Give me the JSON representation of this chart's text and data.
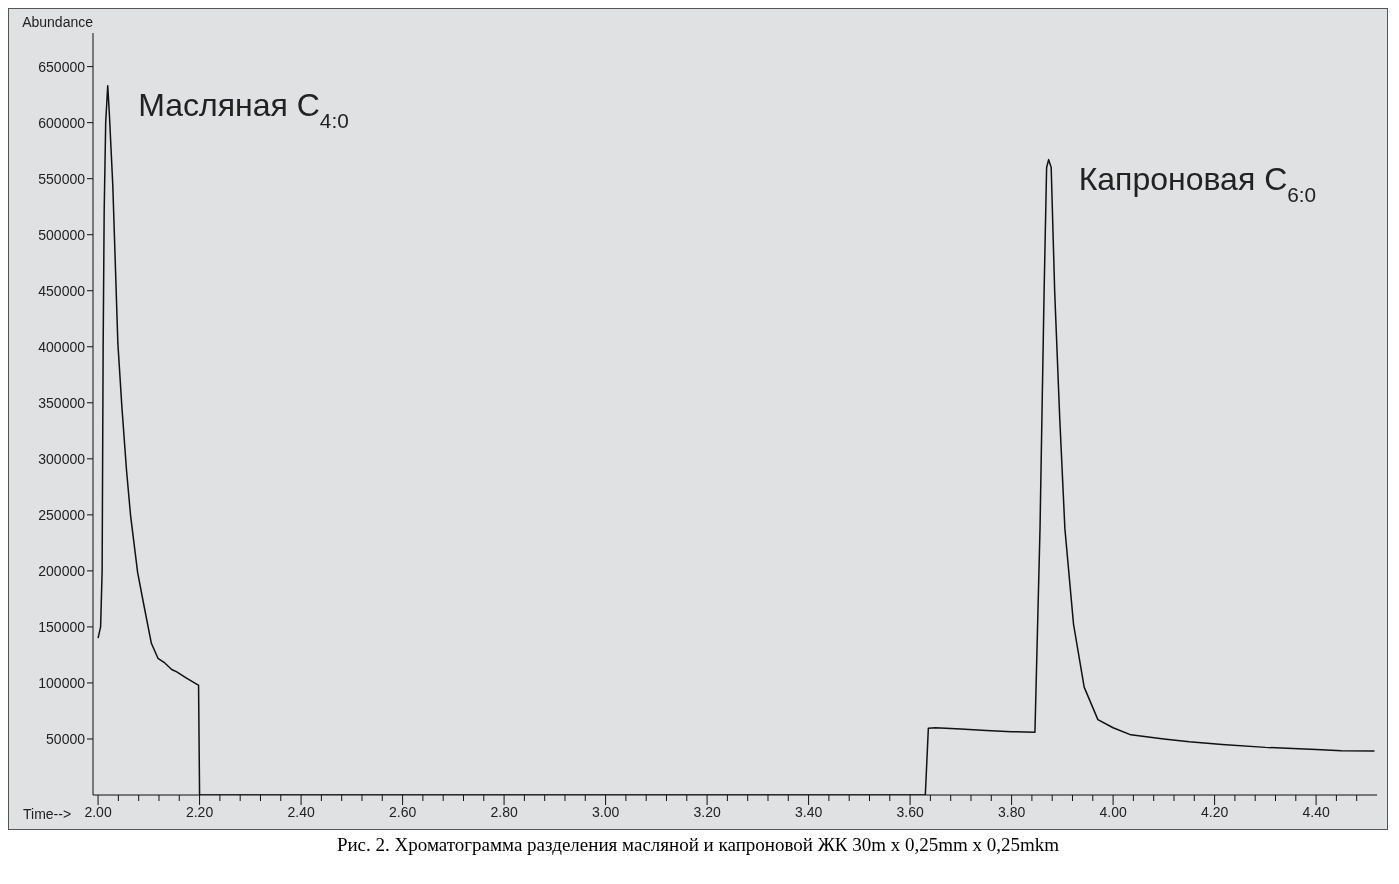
{
  "chart_data": {
    "type": "line",
    "title": "Рис. 2. Хроматограмма разделения масляной и капроновой ЖК 30m x 0,25mm x 0,25mkm",
    "xlabel": "Time-->",
    "ylabel": "Abundance",
    "annotations": [
      {
        "text": "Масляная C$_{4:0}$",
        "x": 2.02,
        "y": 633000
      },
      {
        "text": "Капроновая C$_{6:0}$",
        "x": 3.873,
        "y": 567000
      }
    ],
    "series": [
      {
        "color": "#111111",
        "x": [
          2.0,
          2.005,
          2.008,
          2.01,
          2.012,
          2.015,
          2.019,
          2.022,
          2.029,
          2.039,
          2.047,
          2.056,
          2.064,
          2.078,
          2.09,
          2.105,
          2.118,
          2.13,
          2.145,
          2.155,
          2.175,
          2.195,
          2.198,
          2.2,
          3.63,
          3.636,
          3.65,
          3.7,
          3.75,
          3.8,
          3.846,
          3.856,
          3.864,
          3.869,
          3.873,
          3.878,
          3.885,
          3.895,
          3.905,
          3.922,
          3.943,
          3.97,
          4.0,
          4.035,
          4.1,
          4.15,
          4.215,
          4.3,
          4.4,
          4.45,
          4.515
        ],
        "values": [
          140000,
          150000,
          200000,
          400000,
          520000,
          600000,
          633000,
          610000,
          544000,
          403000,
          345800,
          290000,
          249600,
          198500,
          170000,
          135400,
          122000,
          118400,
          112000,
          109900,
          104000,
          98800,
          98000,
          0,
          0,
          59600,
          60000,
          59000,
          57500,
          56500,
          56000,
          237700,
          448000,
          560000,
          567000,
          560000,
          448000,
          334800,
          237700,
          152500,
          96300,
          67300,
          60000,
          53700,
          50000,
          47500,
          45100,
          42500,
          40500,
          39500,
          39200
        ]
      }
    ],
    "xlim": [
      1.99,
      4.52
    ],
    "ylim": [
      0,
      680000
    ],
    "xticks": [
      {
        "value": 2.0,
        "label": "2.00"
      },
      {
        "value": 2.04,
        "label": null
      },
      {
        "value": 2.08,
        "label": null
      },
      {
        "value": 2.12,
        "label": null
      },
      {
        "value": 2.16,
        "label": null
      },
      {
        "value": 2.2,
        "label": "2.20"
      },
      {
        "value": 2.24,
        "label": null
      },
      {
        "value": 2.28,
        "label": null
      },
      {
        "value": 2.32,
        "label": null
      },
      {
        "value": 2.36,
        "label": null
      },
      {
        "value": 2.4,
        "label": "2.40"
      },
      {
        "value": 2.44,
        "label": null
      },
      {
        "value": 2.48,
        "label": null
      },
      {
        "value": 2.52,
        "label": null
      },
      {
        "value": 2.56,
        "label": null
      },
      {
        "value": 2.6,
        "label": "2.60"
      },
      {
        "value": 2.64,
        "label": null
      },
      {
        "value": 2.68,
        "label": null
      },
      {
        "value": 2.72,
        "label": null
      },
      {
        "value": 2.76,
        "label": null
      },
      {
        "value": 2.8,
        "label": "2.80"
      },
      {
        "value": 2.84,
        "label": null
      },
      {
        "value": 2.88,
        "label": null
      },
      {
        "value": 2.92,
        "label": null
      },
      {
        "value": 2.96,
        "label": null
      },
      {
        "value": 3.0,
        "label": "3.00"
      },
      {
        "value": 3.04,
        "label": null
      },
      {
        "value": 3.08,
        "label": null
      },
      {
        "value": 3.12,
        "label": null
      },
      {
        "value": 3.16,
        "label": null
      },
      {
        "value": 3.2,
        "label": "3.20"
      },
      {
        "value": 3.24,
        "label": null
      },
      {
        "value": 3.28,
        "label": null
      },
      {
        "value": 3.32,
        "label": null
      },
      {
        "value": 3.36,
        "label": null
      },
      {
        "value": 3.4,
        "label": "3.40"
      },
      {
        "value": 3.44,
        "label": null
      },
      {
        "value": 3.48,
        "label": null
      },
      {
        "value": 3.52,
        "label": null
      },
      {
        "value": 3.56,
        "label": null
      },
      {
        "value": 3.6,
        "label": "3.60"
      },
      {
        "value": 3.64,
        "label": null
      },
      {
        "value": 3.68,
        "label": null
      },
      {
        "value": 3.72,
        "label": null
      },
      {
        "value": 3.76,
        "label": null
      },
      {
        "value": 3.8,
        "label": "3.80"
      },
      {
        "value": 3.84,
        "label": null
      },
      {
        "value": 3.88,
        "label": null
      },
      {
        "value": 3.92,
        "label": null
      },
      {
        "value": 3.96,
        "label": null
      },
      {
        "value": 4.0,
        "label": "4.00"
      },
      {
        "value": 4.04,
        "label": null
      },
      {
        "value": 4.08,
        "label": null
      },
      {
        "value": 4.12,
        "label": null
      },
      {
        "value": 4.16,
        "label": null
      },
      {
        "value": 4.2,
        "label": "4.20"
      },
      {
        "value": 4.24,
        "label": null
      },
      {
        "value": 4.28,
        "label": null
      },
      {
        "value": 4.32,
        "label": null
      },
      {
        "value": 4.36,
        "label": null
      },
      {
        "value": 4.4,
        "label": "4.40"
      },
      {
        "value": 4.44,
        "label": null
      },
      {
        "value": 4.48,
        "label": null
      }
    ],
    "yticks": [
      50000,
      100000,
      150000,
      200000,
      250000,
      300000,
      350000,
      400000,
      450000,
      500000,
      550000,
      600000,
      650000
    ],
    "grid": false,
    "legend": false,
    "marker": "none",
    "line_style": "solid"
  }
}
